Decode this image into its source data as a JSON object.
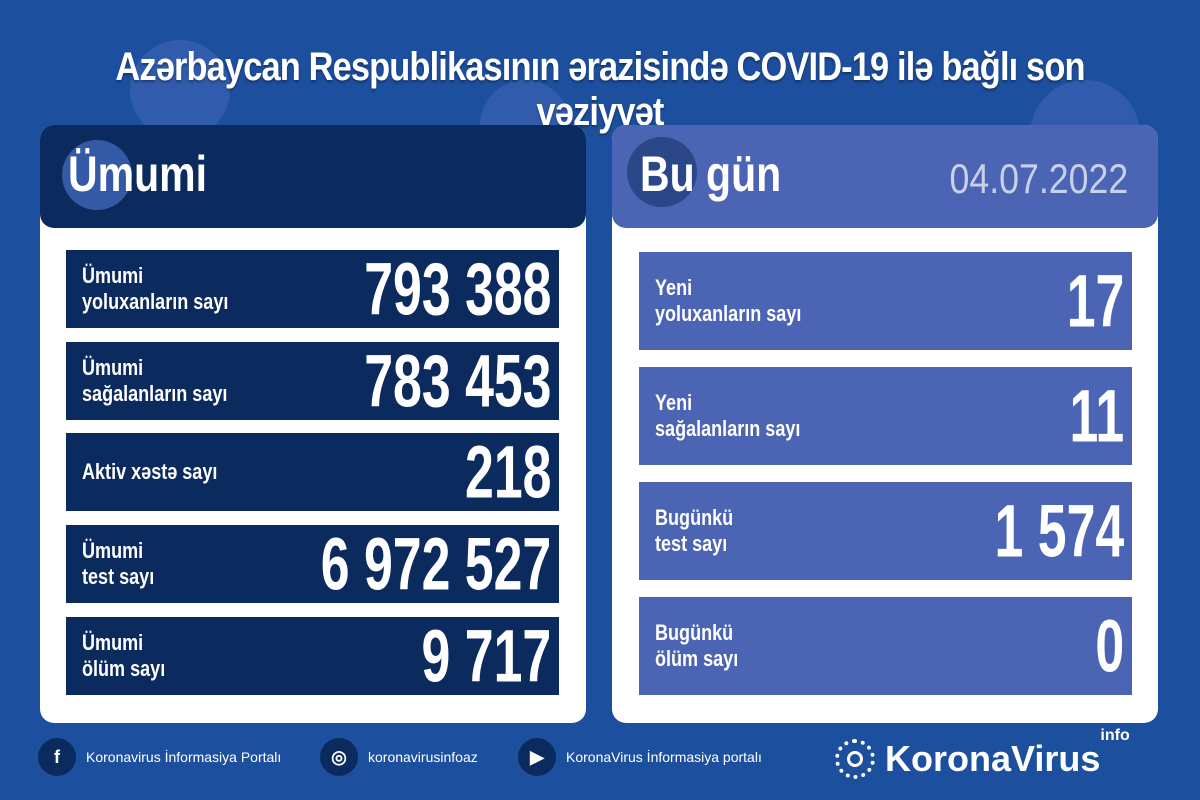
{
  "title": "Azərbaycan Respublikasının ərazisində COVID-19 ilə bağlı son vəziyyət",
  "total": {
    "heading": "Ümumi",
    "rows": [
      {
        "label": "Ümumi\nyoluxanların sayı",
        "value": "793 388"
      },
      {
        "label": "Ümumi\nsağalanların sayı",
        "value": "783 453"
      },
      {
        "label": "Aktiv xəstə sayı",
        "value": "218"
      },
      {
        "label": "Ümumi\ntest sayı",
        "value": "6 972 527"
      },
      {
        "label": "Ümumi\nölüm sayı",
        "value": "9 717"
      }
    ]
  },
  "today": {
    "heading": "Bu gün",
    "date": "04.07.2022",
    "rows": [
      {
        "label": "Yeni\nyoluxanların sayı",
        "value": "17"
      },
      {
        "label": "Yeni\nsağalanların sayı",
        "value": "11"
      },
      {
        "label": "Bugünkü\ntest sayı",
        "value": "1 574"
      },
      {
        "label": "Bugünkü\nölüm sayı",
        "value": "0"
      }
    ]
  },
  "footer": {
    "facebook": "Koronavirus İnformasiya Portalı",
    "instagram": "koronavirusinfoaz",
    "youtube": "KoronaVirus İnformasiya portalı",
    "logo": "KoronaVirus",
    "logo_sup": "info"
  },
  "colors": {
    "background": "#1d4f9f",
    "dark_panel": "#0b2a5e",
    "light_panel": "#4b64b3"
  }
}
